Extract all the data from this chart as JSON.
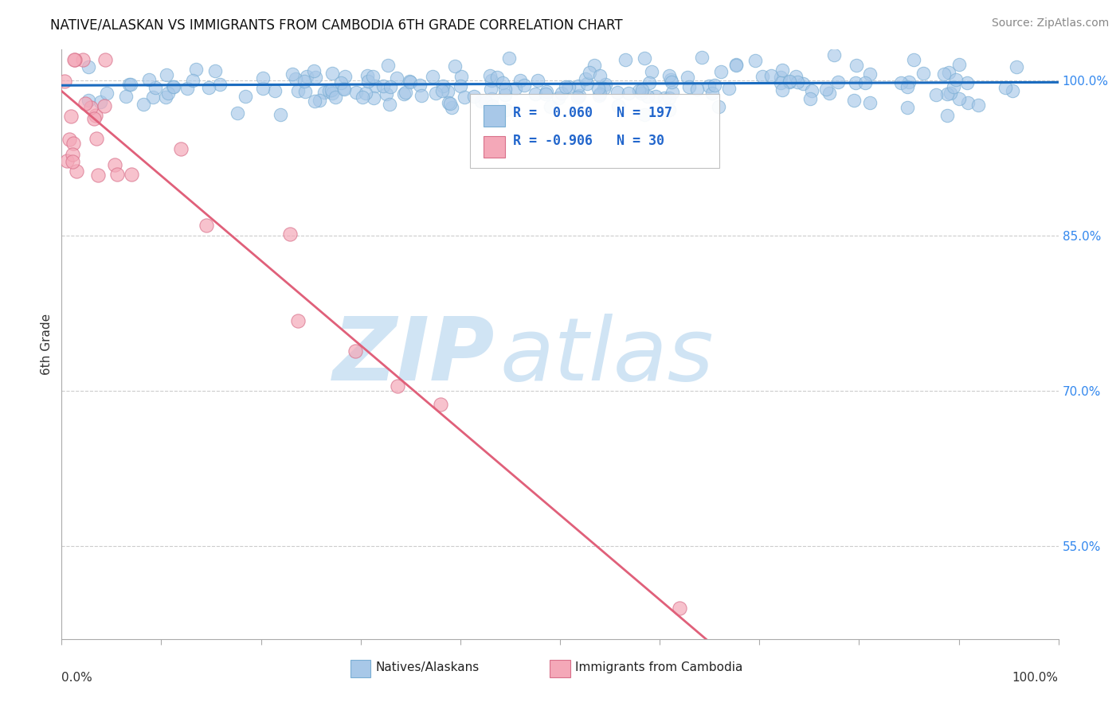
{
  "title": "NATIVE/ALASKAN VS IMMIGRANTS FROM CAMBODIA 6TH GRADE CORRELATION CHART",
  "source": "Source: ZipAtlas.com",
  "ylabel": "6th Grade",
  "ytick_labels": [
    "55.0%",
    "70.0%",
    "85.0%",
    "100.0%"
  ],
  "ytick_values": [
    0.55,
    0.7,
    0.85,
    1.0
  ],
  "xlim": [
    0.0,
    1.0
  ],
  "ylim": [
    0.46,
    1.03
  ],
  "legend_entries": [
    {
      "label": "Natives/Alaskans",
      "R": 0.06,
      "N": 197
    },
    {
      "label": "Immigrants from Cambodia",
      "R": -0.906,
      "N": 30
    }
  ],
  "blue_line_color": "#1a6bbf",
  "pink_line_color": "#e0607a",
  "blue_marker_color": "#a8c8e8",
  "blue_marker_edge": "#7aaed4",
  "pink_marker_color": "#f4a8b8",
  "pink_marker_edge": "#d8708a",
  "watermark_zip": "ZIP",
  "watermark_atlas": "atlas",
  "watermark_color": "#d0e4f4",
  "background_color": "#ffffff",
  "title_fontsize": 12,
  "source_fontsize": 10,
  "marker_size": 140,
  "blue_line_y_intercept": 0.9955,
  "blue_line_slope": 0.003,
  "pink_line_y_intercept": 0.99,
  "pink_line_slope": -0.82
}
